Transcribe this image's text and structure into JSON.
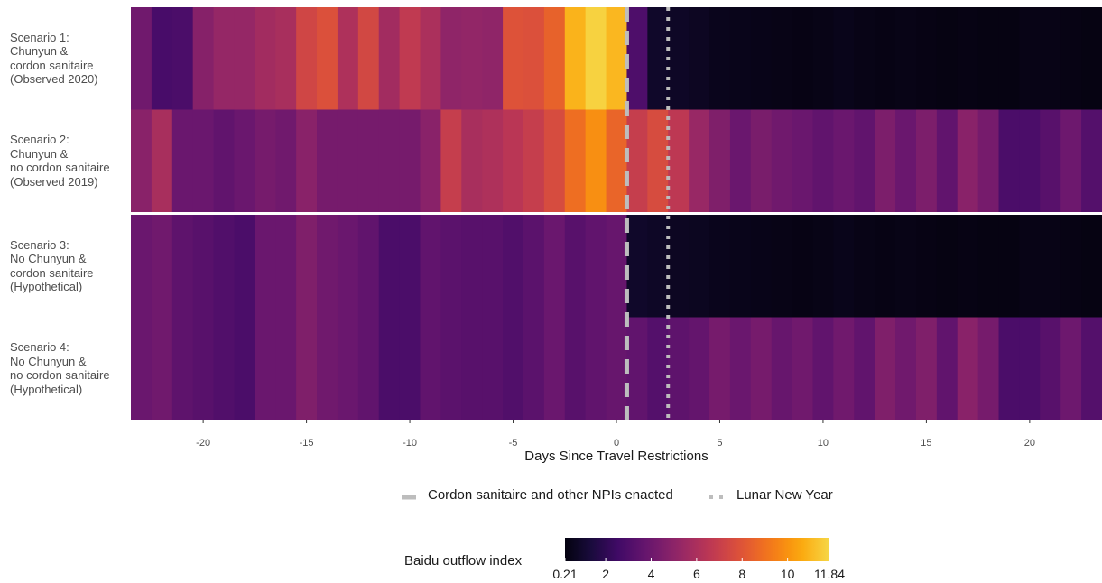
{
  "chart_data": {
    "type": "heatmap",
    "xlabel": "Days Since Travel Restrictions",
    "x": [
      -23,
      -22,
      -21,
      -20,
      -19,
      -18,
      -17,
      -16,
      -15,
      -14,
      -13,
      -12,
      -11,
      -10,
      -9,
      -8,
      -7,
      -6,
      -5,
      -4,
      -3,
      -2,
      -1,
      0,
      1,
      2,
      3,
      4,
      5,
      6,
      7,
      8,
      9,
      10,
      11,
      12,
      13,
      14,
      15,
      16,
      17,
      18,
      19,
      20,
      21,
      22,
      23
    ],
    "xlim": [
      -23.5,
      23.5
    ],
    "xticks": [
      -20,
      -15,
      -10,
      -5,
      0,
      5,
      10,
      15,
      20
    ],
    "rows": [
      {
        "label": [
          "Scenario 1:",
          "Chunyun &",
          "cordon sanitaire",
          "(Observed 2020)"
        ],
        "values": [
          4.1,
          2.8,
          2.9,
          4.8,
          5.3,
          5.3,
          5.7,
          5.9,
          7.3,
          7.8,
          6.1,
          7.4,
          5.7,
          6.7,
          6.0,
          5.1,
          5.2,
          5.1,
          7.9,
          7.8,
          8.5,
          10.9,
          11.7,
          11.0,
          3.0,
          0.9,
          0.8,
          0.7,
          0.55,
          0.5,
          0.45,
          0.4,
          0.35,
          0.4,
          0.5,
          0.4,
          0.35,
          0.4,
          0.35,
          0.3,
          0.35,
          0.3,
          0.3,
          0.4,
          0.4,
          0.35,
          0.3
        ]
      },
      {
        "label": [
          "Scenario 2:",
          "Chunyun &",
          "no cordon sanitaire",
          "(Observed 2019)"
        ],
        "values": [
          4.9,
          5.9,
          3.9,
          3.9,
          3.6,
          3.9,
          4.3,
          4.1,
          4.9,
          4.3,
          4.3,
          4.3,
          4.3,
          4.3,
          4.9,
          6.9,
          5.9,
          6.1,
          6.5,
          6.9,
          7.6,
          8.9,
          9.9,
          8.6,
          6.9,
          7.6,
          6.6,
          5.4,
          4.6,
          3.9,
          4.4,
          4.1,
          3.9,
          3.6,
          3.9,
          3.6,
          4.5,
          3.9,
          4.5,
          3.6,
          4.9,
          4.3,
          2.9,
          2.9,
          3.3,
          4.0,
          3.2
        ]
      },
      {
        "label": [
          "Scenario 3:",
          "No Chunyun &",
          "cordon sanitaire",
          "(Hypothetical)"
        ],
        "values": [
          3.9,
          4.1,
          3.5,
          3.3,
          3.1,
          2.9,
          3.9,
          3.9,
          4.6,
          4.1,
          3.9,
          3.6,
          2.9,
          2.9,
          3.6,
          3.4,
          3.3,
          3.3,
          3.1,
          3.4,
          3.9,
          3.3,
          3.6,
          3.8,
          0.9,
          0.8,
          0.7,
          0.65,
          0.55,
          0.5,
          0.45,
          0.4,
          0.35,
          0.4,
          0.5,
          0.4,
          0.35,
          0.4,
          0.35,
          0.3,
          0.35,
          0.3,
          0.3,
          0.4,
          0.4,
          0.35,
          0.3
        ]
      },
      {
        "label": [
          "Scenario 4:",
          "No Chunyun &",
          "no cordon sanitaire",
          "(Hypothetical)"
        ],
        "values": [
          3.9,
          4.1,
          3.5,
          3.3,
          3.1,
          2.9,
          3.9,
          3.9,
          4.6,
          4.1,
          3.9,
          3.6,
          2.9,
          2.9,
          3.6,
          3.4,
          3.3,
          3.3,
          3.1,
          3.4,
          3.9,
          3.3,
          3.6,
          3.8,
          3.6,
          3.2,
          3.5,
          3.7,
          4.3,
          3.9,
          4.3,
          3.8,
          4.1,
          3.6,
          4.1,
          3.6,
          4.6,
          4.1,
          4.6,
          3.6,
          4.9,
          4.3,
          2.9,
          2.9,
          3.3,
          4.0,
          3.2
        ]
      }
    ],
    "vlines": [
      {
        "x": 0.5,
        "style": "dashed",
        "label": "Cordon sanitaire and other NPIs enacted"
      },
      {
        "x": 2.5,
        "style": "dotted",
        "label": "Lunar New Year"
      }
    ],
    "colorscale": {
      "name": "inferno",
      "title": "Baidu outflow index",
      "min": 0.21,
      "max": 11.84,
      "tick_labels": [
        "0.21",
        "2",
        "4",
        "6",
        "8",
        "10",
        "11.84"
      ],
      "tick_values": [
        0.21,
        2,
        4,
        6,
        8,
        10,
        11.84
      ]
    },
    "line_color": "#bdbdbd",
    "separator_color": "#ffffff"
  }
}
